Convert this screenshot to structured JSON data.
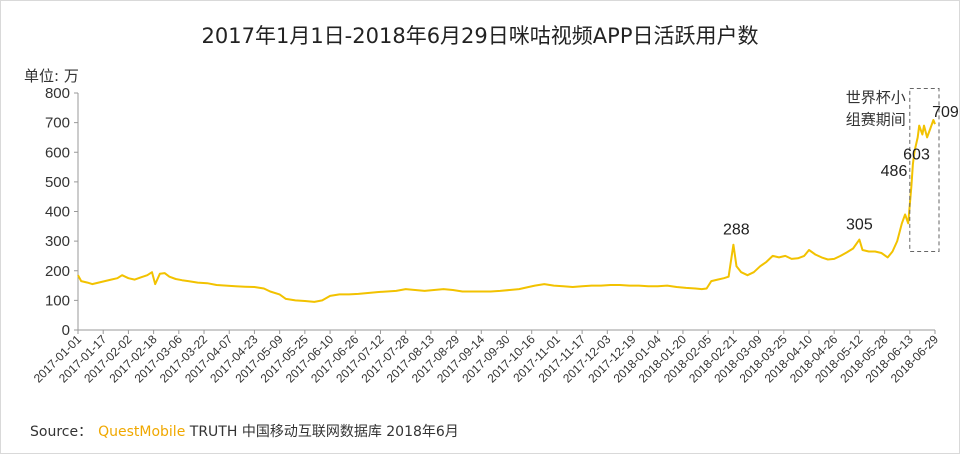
{
  "chart_data": {
    "type": "line",
    "title": "2017年1月1日-2018年6月29日咪咕视频APP日活跃用户数",
    "ylabel": "单位: 万",
    "ylim": [
      0,
      800
    ],
    "yticks": [
      0,
      100,
      200,
      300,
      400,
      500,
      600,
      700,
      800
    ],
    "grid": false,
    "x_start": "2017-01-01",
    "x_end": "2018-06-29",
    "x_tick_labels": [
      "2017-01-01",
      "2017-01-17",
      "2017-02-02",
      "2017-02-18",
      "2017-03-06",
      "2017-03-22",
      "2017-04-07",
      "2017-04-23",
      "2017-05-09",
      "2017-05-25",
      "2017-06-10",
      "2017-06-26",
      "2017-07-12",
      "2017-07-28",
      "2017-08-13",
      "2017-08-29",
      "2017-09-14",
      "2017-09-30",
      "2017-10-16",
      "2017-11-01",
      "2017-11-17",
      "2017-12-03",
      "2017-12-19",
      "2018-01-04",
      "2018-01-20",
      "2018-02-05",
      "2018-02-21",
      "2018-03-09",
      "2018-03-25",
      "2018-04-10",
      "2018-04-26",
      "2018-05-12",
      "2018-05-28",
      "2018-06-13",
      "2018-06-29"
    ],
    "series": [
      {
        "color": "#f2c200",
        "points": [
          [
            "2017-01-01",
            185
          ],
          [
            "2017-01-03",
            165
          ],
          [
            "2017-01-07",
            160
          ],
          [
            "2017-01-10",
            155
          ],
          [
            "2017-01-14",
            160
          ],
          [
            "2017-01-18",
            165
          ],
          [
            "2017-01-22",
            170
          ],
          [
            "2017-01-26",
            175
          ],
          [
            "2017-01-29",
            185
          ],
          [
            "2017-02-02",
            175
          ],
          [
            "2017-02-06",
            170
          ],
          [
            "2017-02-10",
            178
          ],
          [
            "2017-02-14",
            185
          ],
          [
            "2017-02-17",
            195
          ],
          [
            "2017-02-19",
            155
          ],
          [
            "2017-02-22",
            190
          ],
          [
            "2017-02-25",
            192
          ],
          [
            "2017-02-28",
            180
          ],
          [
            "2017-03-04",
            172
          ],
          [
            "2017-03-08",
            168
          ],
          [
            "2017-03-12",
            165
          ],
          [
            "2017-03-18",
            160
          ],
          [
            "2017-03-24",
            158
          ],
          [
            "2017-03-30",
            152
          ],
          [
            "2017-04-05",
            150
          ],
          [
            "2017-04-11",
            148
          ],
          [
            "2017-04-17",
            146
          ],
          [
            "2017-04-23",
            145
          ],
          [
            "2017-04-29",
            140
          ],
          [
            "2017-05-03",
            130
          ],
          [
            "2017-05-09",
            120
          ],
          [
            "2017-05-13",
            105
          ],
          [
            "2017-05-19",
            100
          ],
          [
            "2017-05-25",
            98
          ],
          [
            "2017-05-31",
            95
          ],
          [
            "2017-06-05",
            100
          ],
          [
            "2017-06-10",
            115
          ],
          [
            "2017-06-16",
            120
          ],
          [
            "2017-06-22",
            120
          ],
          [
            "2017-06-28",
            122
          ],
          [
            "2017-07-04",
            125
          ],
          [
            "2017-07-10",
            128
          ],
          [
            "2017-07-16",
            130
          ],
          [
            "2017-07-22",
            132
          ],
          [
            "2017-07-28",
            138
          ],
          [
            "2017-08-03",
            135
          ],
          [
            "2017-08-09",
            132
          ],
          [
            "2017-08-15",
            135
          ],
          [
            "2017-08-21",
            138
          ],
          [
            "2017-08-27",
            135
          ],
          [
            "2017-09-02",
            130
          ],
          [
            "2017-09-08",
            130
          ],
          [
            "2017-09-14",
            130
          ],
          [
            "2017-09-20",
            130
          ],
          [
            "2017-09-26",
            132
          ],
          [
            "2017-10-02",
            135
          ],
          [
            "2017-10-08",
            138
          ],
          [
            "2017-10-14",
            145
          ],
          [
            "2017-10-18",
            150
          ],
          [
            "2017-10-24",
            155
          ],
          [
            "2017-10-30",
            150
          ],
          [
            "2017-11-05",
            148
          ],
          [
            "2017-11-11",
            145
          ],
          [
            "2017-11-17",
            148
          ],
          [
            "2017-11-23",
            150
          ],
          [
            "2017-11-29",
            150
          ],
          [
            "2017-12-05",
            152
          ],
          [
            "2017-12-11",
            152
          ],
          [
            "2017-12-17",
            150
          ],
          [
            "2017-12-23",
            150
          ],
          [
            "2017-12-29",
            148
          ],
          [
            "2018-01-04",
            148
          ],
          [
            "2018-01-10",
            150
          ],
          [
            "2018-01-16",
            145
          ],
          [
            "2018-01-22",
            142
          ],
          [
            "2018-01-28",
            140
          ],
          [
            "2018-02-01",
            138
          ],
          [
            "2018-02-04",
            140
          ],
          [
            "2018-02-07",
            165
          ],
          [
            "2018-02-11",
            170
          ],
          [
            "2018-02-15",
            175
          ],
          [
            "2018-02-18",
            180
          ],
          [
            "2018-02-21",
            288
          ],
          [
            "2018-02-23",
            215
          ],
          [
            "2018-02-26",
            195
          ],
          [
            "2018-03-02",
            185
          ],
          [
            "2018-03-06",
            195
          ],
          [
            "2018-03-10",
            215
          ],
          [
            "2018-03-14",
            230
          ],
          [
            "2018-03-18",
            250
          ],
          [
            "2018-03-22",
            245
          ],
          [
            "2018-03-26",
            250
          ],
          [
            "2018-03-30",
            240
          ],
          [
            "2018-04-03",
            242
          ],
          [
            "2018-04-07",
            250
          ],
          [
            "2018-04-10",
            270
          ],
          [
            "2018-04-14",
            255
          ],
          [
            "2018-04-18",
            245
          ],
          [
            "2018-04-22",
            238
          ],
          [
            "2018-04-26",
            240
          ],
          [
            "2018-04-30",
            250
          ],
          [
            "2018-05-04",
            262
          ],
          [
            "2018-05-08",
            275
          ],
          [
            "2018-05-12",
            305
          ],
          [
            "2018-05-14",
            270
          ],
          [
            "2018-05-18",
            265
          ],
          [
            "2018-05-22",
            265
          ],
          [
            "2018-05-26",
            260
          ],
          [
            "2018-05-30",
            245
          ],
          [
            "2018-06-02",
            265
          ],
          [
            "2018-06-05",
            300
          ],
          [
            "2018-06-08",
            360
          ],
          [
            "2018-06-10",
            390
          ],
          [
            "2018-06-12",
            360
          ],
          [
            "2018-06-14",
            486
          ],
          [
            "2018-06-15",
            560
          ],
          [
            "2018-06-16",
            603
          ],
          [
            "2018-06-18",
            650
          ],
          [
            "2018-06-19",
            690
          ],
          [
            "2018-06-21",
            660
          ],
          [
            "2018-06-22",
            690
          ],
          [
            "2018-06-24",
            650
          ],
          [
            "2018-06-26",
            680
          ],
          [
            "2018-06-28",
            709
          ],
          [
            "2018-06-29",
            695
          ]
        ]
      }
    ],
    "data_labels": [
      {
        "date": "2018-02-21",
        "value": 288,
        "text": "288"
      },
      {
        "date": "2018-05-12",
        "value": 305,
        "text": "305"
      },
      {
        "date": "2018-06-14",
        "value": 486,
        "text": "486"
      },
      {
        "date": "2018-06-16",
        "value": 603,
        "text": "603"
      },
      {
        "date": "2018-06-28",
        "value": 709,
        "text": "709"
      }
    ],
    "annotation": {
      "line1": "世界杯小",
      "line2": "组赛期间",
      "box_from": "2018-06-13",
      "box_to": "2018-06-29",
      "box_ymin": 265,
      "box_ymax": 815
    }
  },
  "footer": {
    "source_label": "Source：",
    "brand": "QuestMobile",
    "source_text": "TRUTH 中国移动互联网数据库 2018年6月"
  }
}
